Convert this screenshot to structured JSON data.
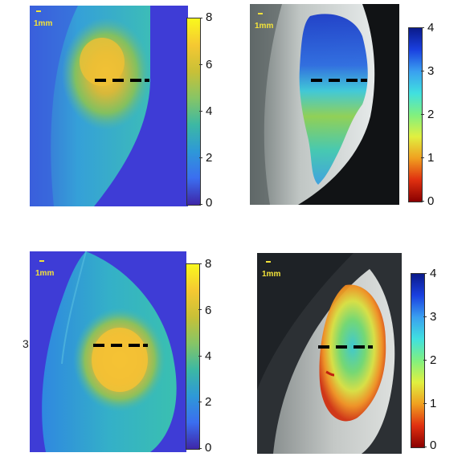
{
  "panels": [
    {
      "scale_label": "1mm"
    },
    {
      "scale_label": "1mm"
    },
    {
      "scale_label": "1mm"
    },
    {
      "scale_label": "1mm"
    }
  ],
  "colorbars": {
    "left": {
      "ticks": [
        "8",
        "6",
        "4",
        "2",
        "0"
      ],
      "range": [
        0,
        8
      ],
      "colormap": "parula"
    },
    "right": {
      "ticks": [
        "4",
        "3",
        "2",
        "1",
        "0"
      ],
      "range": [
        0,
        4
      ],
      "colormap": "jet-reversed"
    }
  },
  "side_mark": "3",
  "colors": {
    "scale_text": "#f2e23a",
    "dashes": "#000000"
  }
}
